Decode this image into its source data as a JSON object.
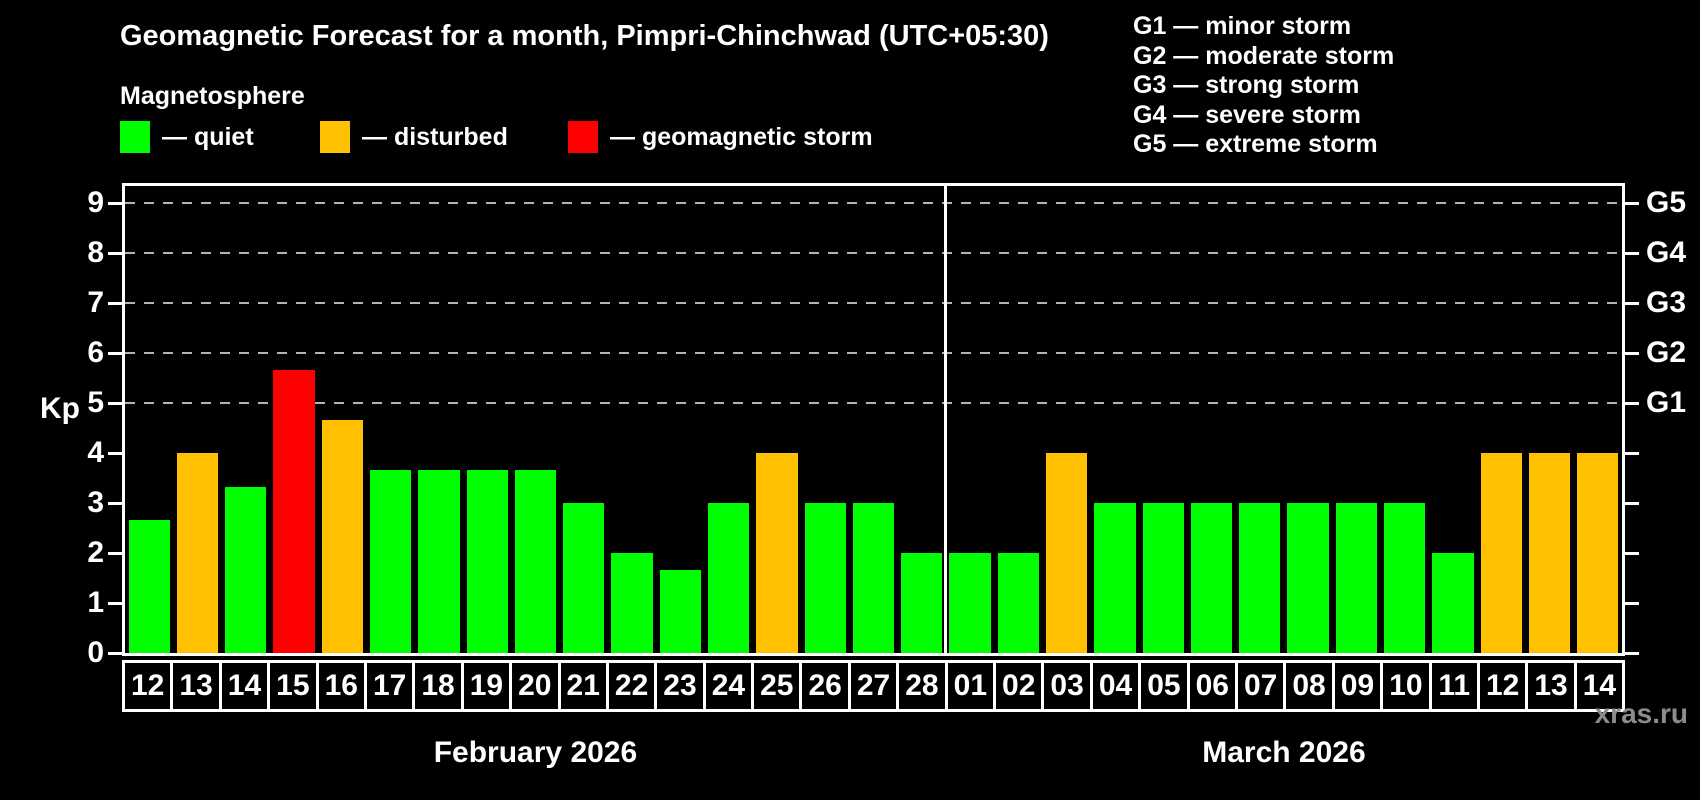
{
  "header": {
    "title": "Geomagnetic Forecast for a month, Pimpri-Chinchwad (UTC+05:30)",
    "subtitle": "Magnetosphere",
    "legend": [
      {
        "name": "quiet",
        "label": "— quiet",
        "color": "#00ff00"
      },
      {
        "name": "disturbed",
        "label": "— disturbed",
        "color": "#ffc000"
      },
      {
        "name": "storm",
        "label": "— geomagnetic storm",
        "color": "#ff0000"
      }
    ],
    "g_scale": [
      "G1 — minor storm",
      "G2 — moderate storm",
      "G3 — strong storm",
      "G4 — severe storm",
      "G5 — extreme storm"
    ]
  },
  "watermark": "xras.ru",
  "chart_data": {
    "type": "bar",
    "ylabel": "Kp",
    "ylim": [
      0,
      9.4
    ],
    "yticks": [
      0,
      1,
      2,
      3,
      4,
      5,
      6,
      7,
      8,
      9
    ],
    "gridlines": [
      5,
      6,
      7,
      8,
      9
    ],
    "grid_style": "dashed",
    "legend_position": "top",
    "right_axis": [
      {
        "value": 5,
        "label": "G1"
      },
      {
        "value": 6,
        "label": "G2"
      },
      {
        "value": 7,
        "label": "G3"
      },
      {
        "value": 8,
        "label": "G4"
      },
      {
        "value": 9,
        "label": "G5"
      }
    ],
    "categories": [
      "12",
      "13",
      "14",
      "15",
      "16",
      "17",
      "18",
      "19",
      "20",
      "21",
      "22",
      "23",
      "24",
      "25",
      "26",
      "27",
      "28",
      "01",
      "02",
      "03",
      "04",
      "05",
      "06",
      "07",
      "08",
      "09",
      "10",
      "11",
      "12",
      "13",
      "14"
    ],
    "values": [
      2.67,
      4,
      3.33,
      5.67,
      4.67,
      3.67,
      3.67,
      3.67,
      3.67,
      3,
      2,
      1.67,
      3,
      4,
      3,
      3,
      2,
      2,
      2,
      4,
      3,
      3,
      3,
      3,
      3,
      3,
      3,
      2,
      4,
      4,
      4
    ],
    "statuses": [
      "quiet",
      "disturbed",
      "quiet",
      "storm",
      "disturbed",
      "quiet",
      "quiet",
      "quiet",
      "quiet",
      "quiet",
      "quiet",
      "quiet",
      "quiet",
      "disturbed",
      "quiet",
      "quiet",
      "quiet",
      "quiet",
      "quiet",
      "disturbed",
      "quiet",
      "quiet",
      "quiet",
      "quiet",
      "quiet",
      "quiet",
      "quiet",
      "quiet",
      "disturbed",
      "disturbed",
      "disturbed"
    ],
    "colors": {
      "quiet": "#00ff00",
      "disturbed": "#ffc000",
      "storm": "#ff0000"
    },
    "months": [
      {
        "label": "February 2026",
        "count": 17
      },
      {
        "label": "March 2026",
        "count": 14
      }
    ]
  }
}
